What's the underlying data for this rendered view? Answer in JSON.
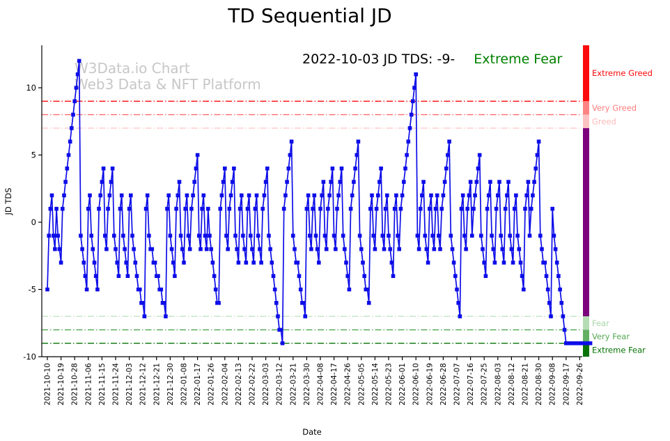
{
  "title": "TD Sequential JD",
  "watermark": {
    "line1": "W3Data.io Chart",
    "line2": "Web3 Data & NFT Platform"
  },
  "annotation": {
    "text": "2022-10-03 JD TDS: -9-",
    "status": "Extreme Fear",
    "status_color": "#008000"
  },
  "colorbar": {
    "segments": [
      {
        "label": "Extreme Greed",
        "from": 13.16,
        "to": 9,
        "color": "#fb0b0b",
        "label_color": "#fb0b0b"
      },
      {
        "label": "Very Greed",
        "from": 9,
        "to": 8,
        "color": "#fd8383",
        "label_color": "#fd7c7c"
      },
      {
        "label": "Greed",
        "from": 8,
        "to": 7,
        "color": "#fec1c1",
        "label_color": "#febaba"
      },
      {
        "label": "",
        "from": 7,
        "to": -7,
        "color": "#7d007d",
        "label_color": "#7d007d"
      },
      {
        "label": "Fear",
        "from": -7,
        "to": -8,
        "color": "#b5dcb5",
        "label_color": "#a8d6a8"
      },
      {
        "label": "Very Fear",
        "from": -8,
        "to": -9,
        "color": "#62b162",
        "label_color": "#55a755"
      },
      {
        "label": "Extreme Fear",
        "from": -9,
        "to": -10,
        "color": "#067306",
        "label_color": "#067306"
      }
    ]
  },
  "chart_data": {
    "type": "line",
    "title": "TD Sequential JD",
    "xlabel": "Date",
    "ylabel": "JD TDS",
    "ylim": [
      -10,
      13.16
    ],
    "grid": false,
    "legend": "none",
    "line_color": "#0d0de8",
    "marker": "square",
    "y_ticks": [
      10,
      5,
      0,
      -5,
      -10
    ],
    "thresholds": [
      {
        "value": 9,
        "color": "#fb0b0b"
      },
      {
        "value": 8,
        "color": "#fd6a6a"
      },
      {
        "value": 7,
        "color": "#fec9c9"
      },
      {
        "value": -7,
        "color": "#bfe4bf"
      },
      {
        "value": -8,
        "color": "#4fa44f"
      },
      {
        "value": -9,
        "color": "#067306"
      }
    ],
    "start_date": "2021-10-10",
    "end_date": "2022-10-03",
    "x_tick_labels": [
      "2021-10-10",
      "2021-10-19",
      "2021-10-28",
      "2021-11-06",
      "2021-11-15",
      "2021-11-24",
      "2021-12-03",
      "2021-12-12",
      "2021-12-21",
      "2021-12-30",
      "2022-01-08",
      "2022-01-17",
      "2022-01-26",
      "2022-02-04",
      "2022-02-13",
      "2022-02-22",
      "2022-03-03",
      "2022-03-12",
      "2022-03-21",
      "2022-03-30",
      "2022-04-08",
      "2022-04-17",
      "2022-04-26",
      "2022-05-05",
      "2022-05-14",
      "2022-05-23",
      "2022-06-01",
      "2022-06-10",
      "2022-06-19",
      "2022-06-28",
      "2022-07-07",
      "2022-07-16",
      "2022-07-25",
      "2022-08-03",
      "2022-08-12",
      "2022-08-21",
      "2022-08-30",
      "2022-09-08",
      "2022-09-17",
      "2022-09-26"
    ],
    "series": [
      {
        "name": "JD TDS",
        "values": [
          -5,
          -1,
          1,
          2,
          -1,
          -2,
          1,
          -1,
          -2,
          -3,
          1,
          2,
          3,
          4,
          5,
          6,
          7,
          8,
          9,
          10,
          11,
          12,
          -1,
          -2,
          -3,
          -4,
          -5,
          1,
          2,
          -1,
          -2,
          -3,
          -4,
          -5,
          1,
          2,
          3,
          4,
          -1,
          -2,
          1,
          2,
          3,
          4,
          -1,
          -2,
          -3,
          -4,
          1,
          2,
          -1,
          -2,
          -3,
          -4,
          1,
          2,
          -1,
          -2,
          -3,
          -4,
          -5,
          -5,
          -6,
          -6,
          -7,
          1,
          2,
          -1,
          -2,
          -2,
          -3,
          -3,
          -4,
          -4,
          -5,
          -5,
          -6,
          -6,
          -7,
          1,
          2,
          -1,
          -2,
          -3,
          -4,
          1,
          2,
          3,
          -1,
          -2,
          -3,
          1,
          2,
          -1,
          -2,
          1,
          2,
          3,
          4,
          5,
          -1,
          -2,
          1,
          2,
          -1,
          -2,
          1,
          -1,
          -2,
          -3,
          -4,
          -5,
          -6,
          -6,
          1,
          2,
          3,
          4,
          -1,
          -2,
          1,
          2,
          3,
          4,
          -1,
          -2,
          -3,
          1,
          2,
          -1,
          -2,
          -3,
          1,
          2,
          -1,
          -2,
          -3,
          1,
          2,
          -1,
          -2,
          -3,
          1,
          2,
          3,
          4,
          -1,
          -2,
          -3,
          -4,
          -5,
          -6,
          -7,
          -8,
          -8,
          -9,
          1,
          2,
          3,
          4,
          5,
          6,
          -1,
          -2,
          -3,
          -3,
          -4,
          -5,
          -6,
          -6,
          -7,
          1,
          2,
          -1,
          -2,
          1,
          2,
          -1,
          -2,
          -3,
          1,
          2,
          3,
          -1,
          -2,
          1,
          2,
          3,
          4,
          -1,
          -2,
          1,
          2,
          3,
          4,
          -1,
          -2,
          -3,
          -4,
          -5,
          1,
          2,
          3,
          4,
          5,
          6,
          -1,
          -2,
          -3,
          -4,
          -5,
          -5,
          -6,
          1,
          2,
          -1,
          -2,
          1,
          2,
          3,
          4,
          -1,
          -2,
          1,
          2,
          -1,
          -2,
          -3,
          -4,
          1,
          2,
          -1,
          -2,
          1,
          2,
          3,
          4,
          5,
          6,
          7,
          8,
          9,
          10,
          11,
          -1,
          -2,
          1,
          2,
          3,
          -1,
          -2,
          -3,
          1,
          2,
          -1,
          -2,
          1,
          2,
          -1,
          -2,
          1,
          2,
          3,
          4,
          5,
          6,
          -1,
          -2,
          -3,
          -4,
          -5,
          -6,
          -7,
          1,
          2,
          -1,
          -2,
          1,
          2,
          3,
          -1,
          1,
          2,
          3,
          4,
          5,
          -1,
          -2,
          -3,
          -4,
          1,
          2,
          3,
          -1,
          -2,
          -3,
          1,
          2,
          3,
          -1,
          -2,
          -3,
          1,
          2,
          3,
          -1,
          -2,
          -3,
          1,
          2,
          -1,
          -2,
          -3,
          -4,
          -5,
          1,
          2,
          3,
          -1,
          1,
          2,
          3,
          4,
          5,
          6,
          -1,
          -2,
          -3,
          -3,
          -4,
          -5,
          -6,
          -7,
          1,
          -1,
          -2,
          -3,
          -4,
          -5,
          -6,
          -7,
          -8,
          -9,
          -9,
          -9,
          -9,
          -9,
          -9,
          -9,
          -9,
          -9,
          -9,
          -9,
          -9,
          -9,
          -9,
          -9,
          -9,
          -9
        ]
      }
    ]
  }
}
